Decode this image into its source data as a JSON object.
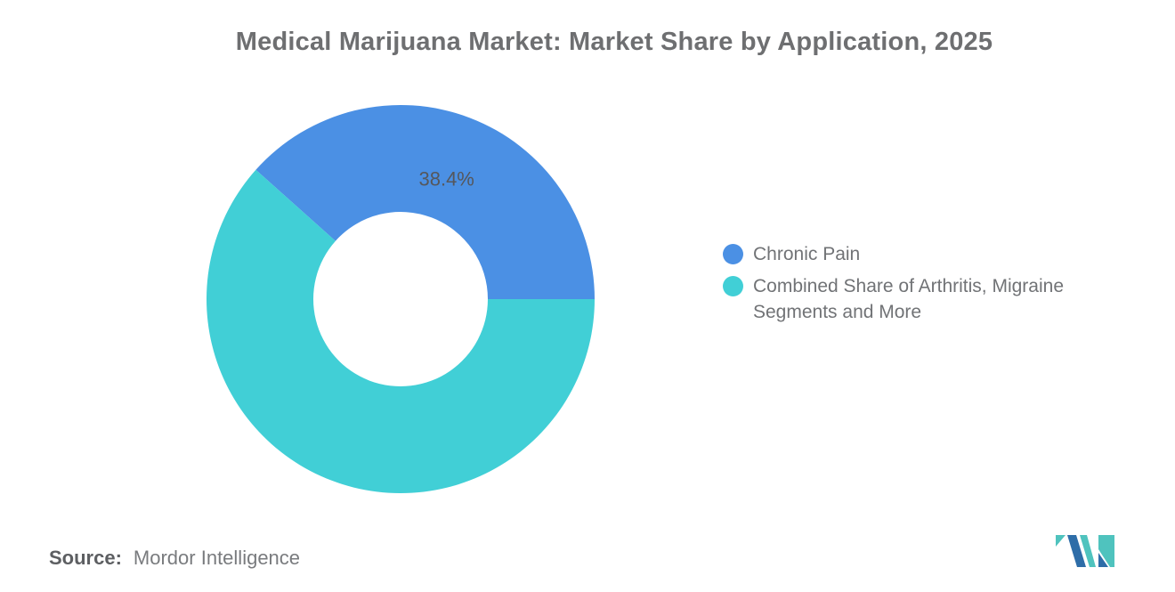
{
  "chart_data": {
    "type": "pie",
    "donut": true,
    "title": "Medical Marijuana Market: Market Share by Application, 2025",
    "start_angle_deg": -48.24,
    "legend_position": "right",
    "slices": [
      {
        "name": "Chronic Pain",
        "value": 38.4,
        "value_label": "38.4%",
        "show_label": true,
        "color": "#4b90e4"
      },
      {
        "name": "Combined Share of Arthritis, Migraine Segments and More",
        "value": 61.6,
        "show_label": false,
        "color": "#41cfd6"
      }
    ],
    "legend": {
      "items": [
        {
          "label": "Chronic Pain",
          "color": "#4b90e4"
        },
        {
          "label": "Combined Share of Arthritis, Migraine Segments and More",
          "color": "#41cfd6"
        }
      ]
    }
  },
  "footer": {
    "source_label": "Source:",
    "source_value": "Mordor Intelligence"
  },
  "logo": {
    "name": "mordor-intelligence-logo",
    "teal_color": "#4fc3be",
    "blue_color": "#2e6da8"
  }
}
